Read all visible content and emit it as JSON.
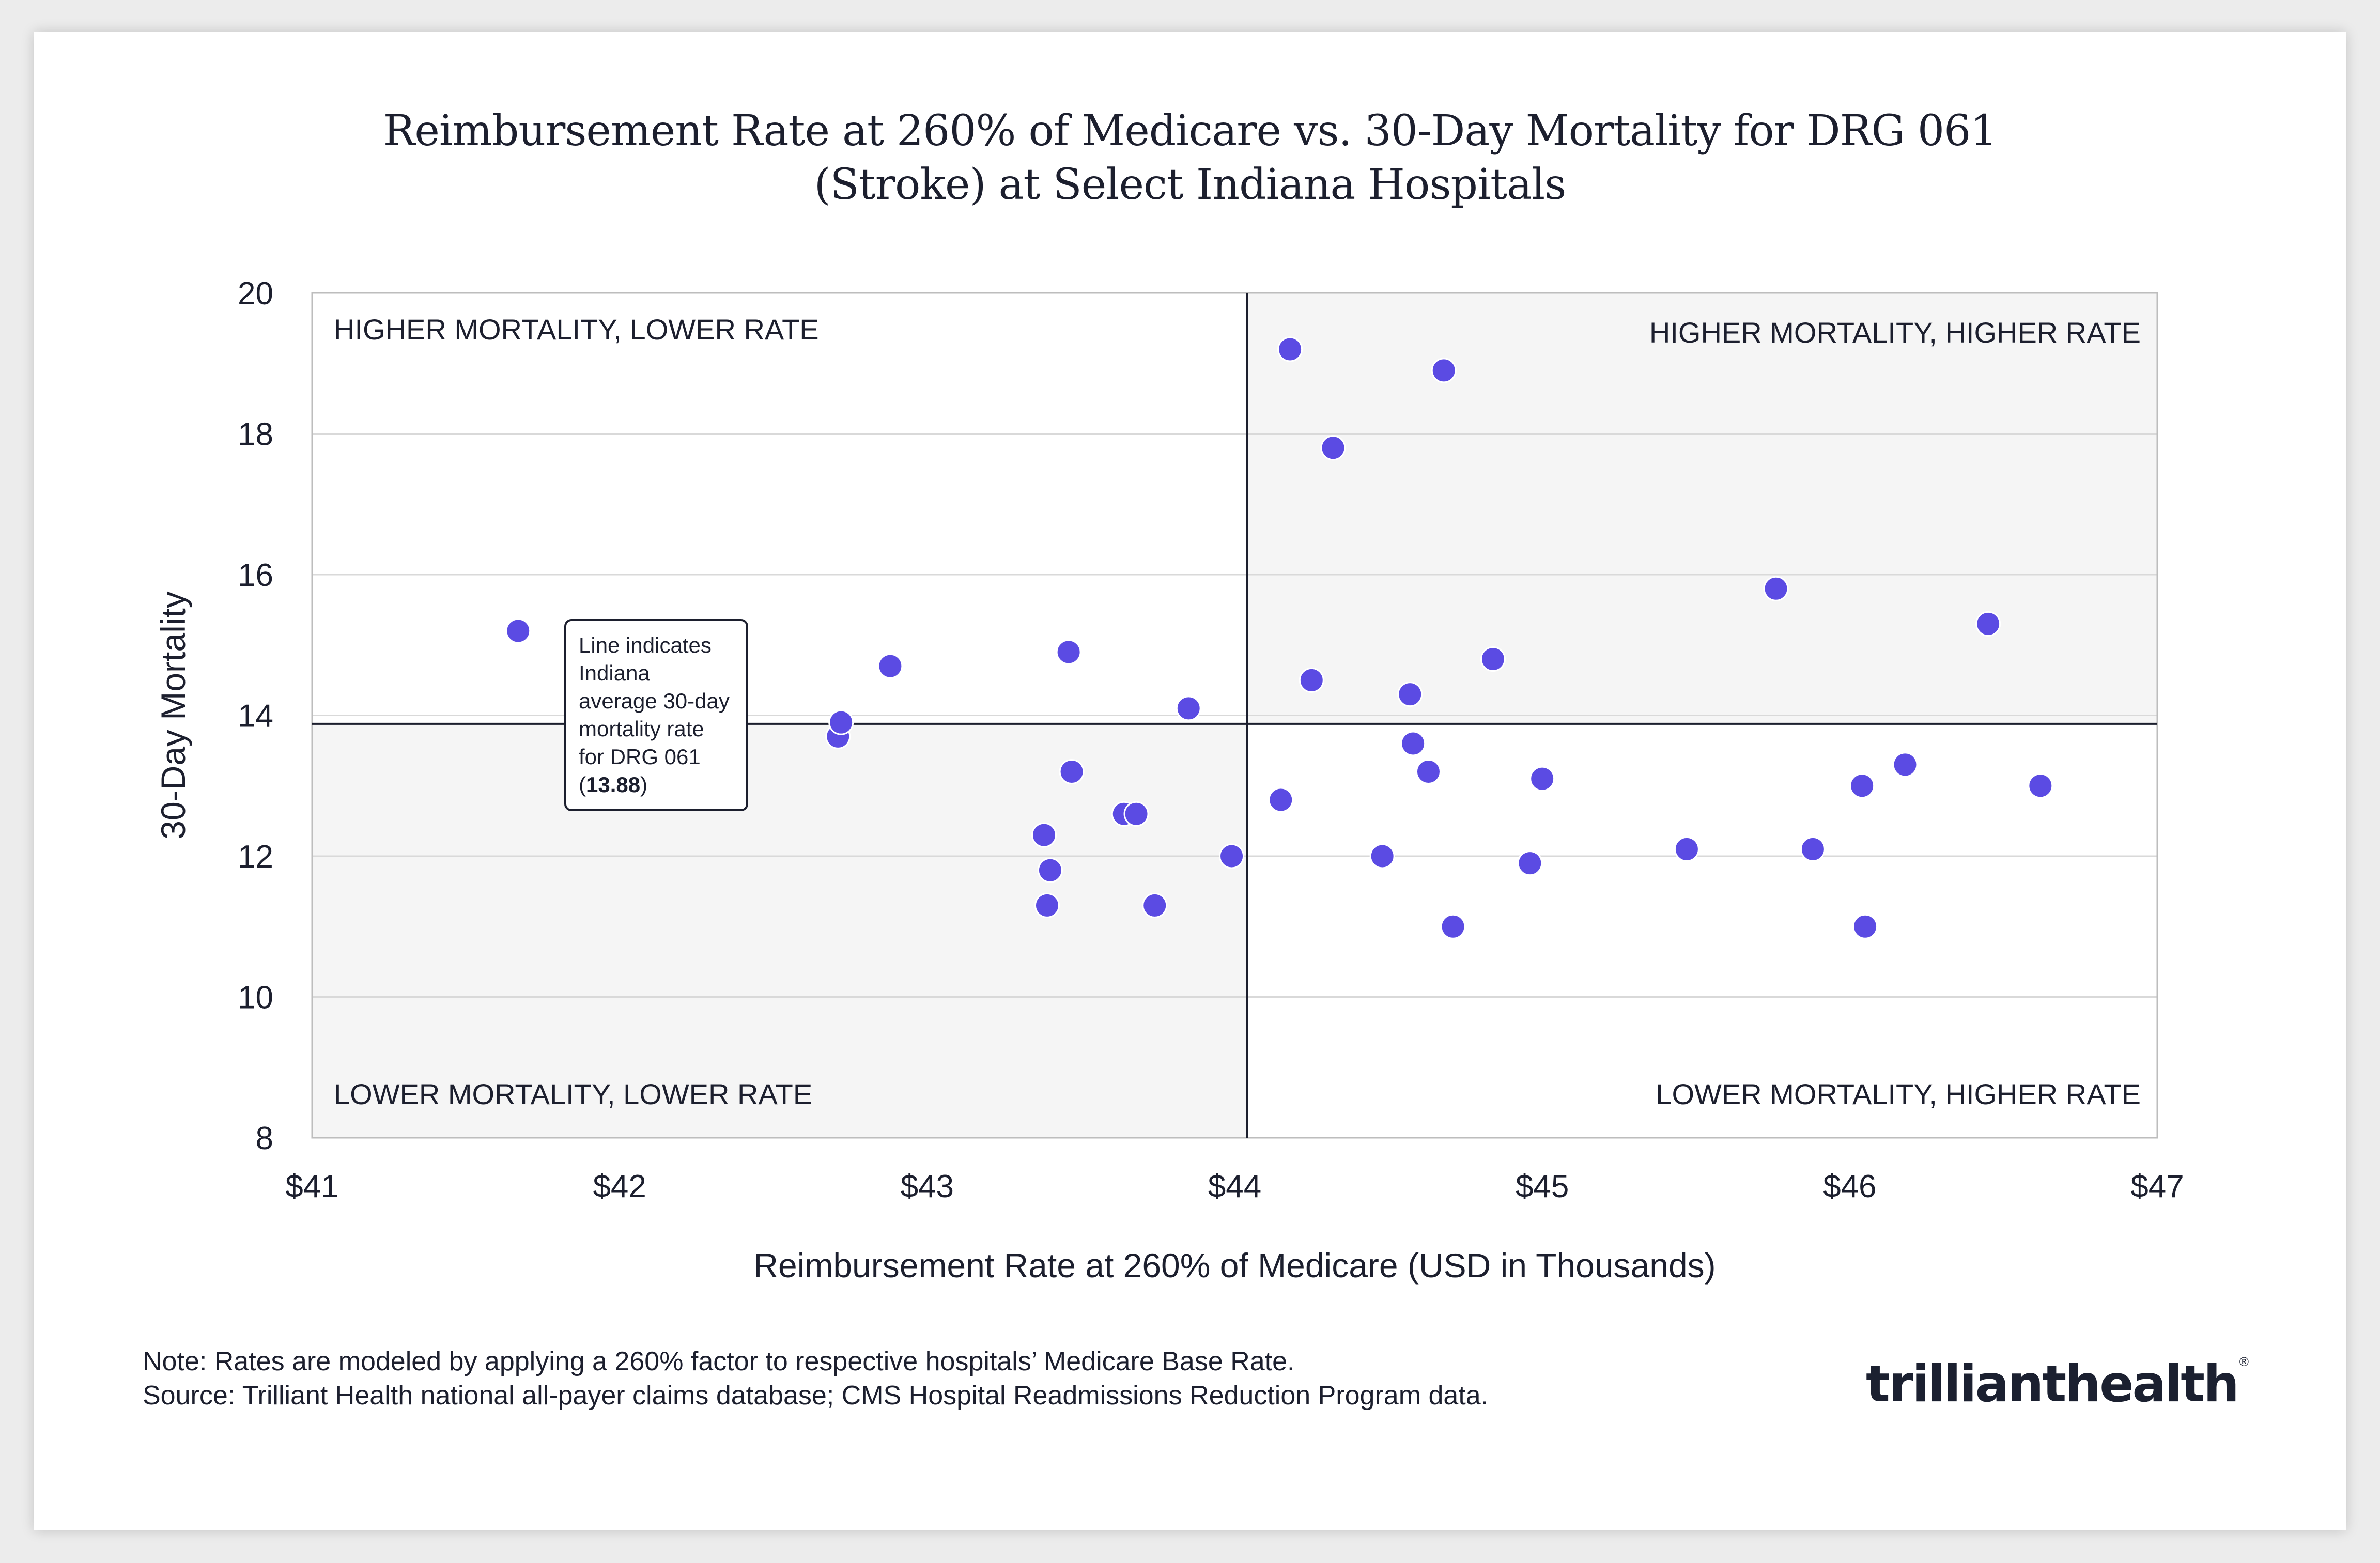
{
  "title": {
    "line1": "Reimbursement Rate at 260% of Medicare vs. 30-Day Mortality for DRG 061",
    "line2": "(Stroke) at Select Indiana Hospitals"
  },
  "chart_data": {
    "type": "scatter",
    "title": "Reimbursement Rate at 260% of Medicare vs. 30-Day Mortality for DRG 061 (Stroke) at Select Indiana Hospitals",
    "xlabel": "Reimbursement Rate at 260% of Medicare (USD in Thousands)",
    "ylabel": "30-Day Mortality",
    "xlim": [
      41,
      47
    ],
    "ylim": [
      8,
      20
    ],
    "xticks": [
      41,
      42,
      43,
      44,
      45,
      46,
      47
    ],
    "xtick_labels": [
      "$41",
      "$42",
      "$43",
      "$44",
      "$45",
      "$46",
      "$47"
    ],
    "yticks": [
      8,
      10,
      12,
      14,
      16,
      18,
      20
    ],
    "ytick_labels": [
      "8",
      "10",
      "12",
      "14",
      "16",
      "18",
      "20"
    ],
    "reference_lines": {
      "x": 44.04,
      "y": 13.88
    },
    "quadrant_labels": {
      "top_left": "HIGHER MORTALITY, LOWER RATE",
      "top_right": "HIGHER MORTALITY, HIGHER RATE",
      "bottom_left": "LOWER MORTALITY, LOWER RATE",
      "bottom_right": "LOWER MORTALITY, HIGHER RATE"
    },
    "series": [
      {
        "name": "Indiana hospitals",
        "color": "#5b4be3",
        "x": [
          41.67,
          42.71,
          42.72,
          42.88,
          43.38,
          43.39,
          43.4,
          43.46,
          43.47,
          43.64,
          43.68,
          43.74,
          43.85,
          43.99,
          44.15,
          44.18,
          44.25,
          44.32,
          44.48,
          44.57,
          44.58,
          44.63,
          44.68,
          44.71,
          44.84,
          44.96,
          45.0,
          45.47,
          45.76,
          45.88,
          46.04,
          46.05,
          46.18,
          46.45,
          46.62
        ],
        "y": [
          15.2,
          13.7,
          13.9,
          14.7,
          12.3,
          11.3,
          11.8,
          14.9,
          13.2,
          12.6,
          12.6,
          11.3,
          14.1,
          12.0,
          12.8,
          19.2,
          14.5,
          17.8,
          12.0,
          14.3,
          13.6,
          13.2,
          18.9,
          11.0,
          14.8,
          11.9,
          13.1,
          12.1,
          15.8,
          12.1,
          13.0,
          11.0,
          13.3,
          15.3,
          13.0
        ]
      }
    ],
    "annotation": {
      "text_prefix": "Line indicates Indiana average 30-day mortality rate for DRG 061 (",
      "value_text": "13.88",
      "text_suffix": ")"
    },
    "colors": {
      "shaded_quadrant": "#f5f5f5",
      "grid": "#d9d9d9",
      "axis": "#1c1f2e",
      "point": "#5b4be3",
      "logo_accent": "#1fd3a6"
    }
  },
  "note": {
    "line1": "Note: Rates are modeled by applying a 260% factor to respective hospitals’ Medicare Base Rate.",
    "line2": "Source: Trilliant Health national all-payer claims database; CMS Hospital Readmissions Reduction Program data."
  },
  "logo": {
    "text": "trilliant health",
    "part1": "trilliant",
    "part2": "health",
    "reg": "®"
  }
}
